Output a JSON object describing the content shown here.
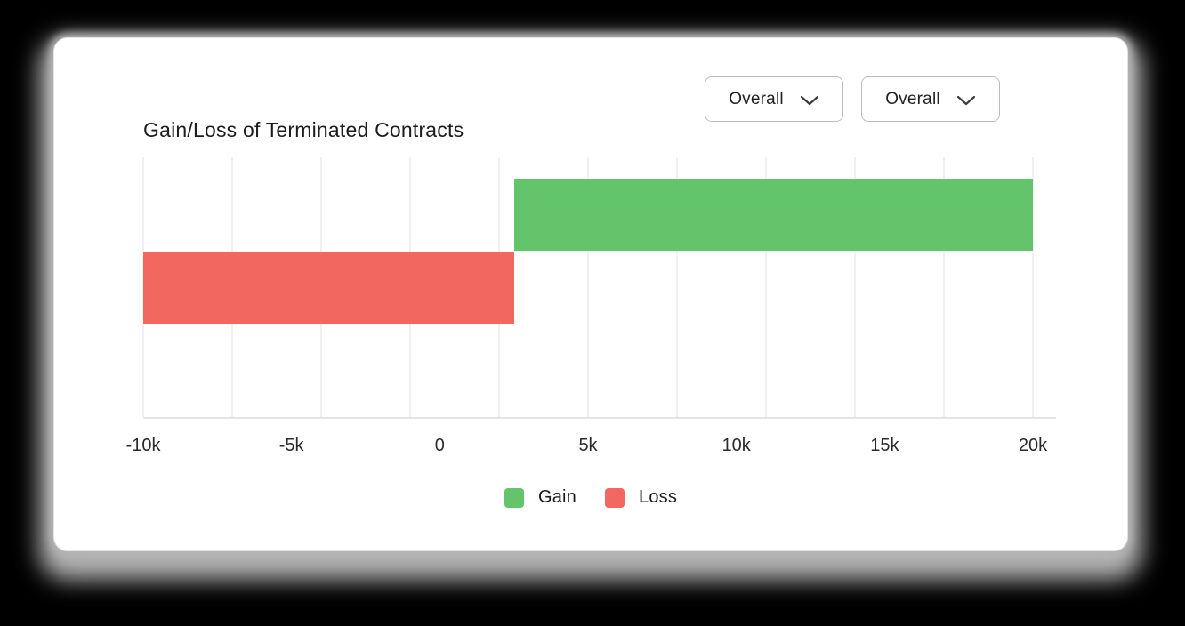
{
  "card": {
    "title": "Gain/Loss of Terminated Contracts"
  },
  "filters": {
    "items": [
      {
        "label": "Overall"
      },
      {
        "label": "Overall"
      }
    ]
  },
  "chart_data": {
    "type": "bar",
    "orientation": "horizontal",
    "title": "Gain/Loss of Terminated Contracts",
    "grid": true,
    "x_axis": {
      "min": -10000,
      "max": 20000,
      "gridlines": 11,
      "ticks": [
        {
          "label": "-10k",
          "value": -10000
        },
        {
          "label": "-5k",
          "value": -5000
        },
        {
          "label": "0",
          "value": 0
        },
        {
          "label": "5k",
          "value": 5000
        },
        {
          "label": "10k",
          "value": 10000
        },
        {
          "label": "15k",
          "value": 15000
        },
        {
          "label": "20k",
          "value": 20000
        }
      ]
    },
    "series": [
      {
        "name": "Gain",
        "color": "#64c46c",
        "from": 2500,
        "to": 20000,
        "value": 17500
      },
      {
        "name": "Loss",
        "color": "#f2675f",
        "from": -10000,
        "to": 2500,
        "value": -12500
      }
    ],
    "legend": {
      "position": "bottom",
      "entries": [
        "Gain",
        "Loss"
      ]
    },
    "colors": {
      "gain": "#64c46c",
      "loss": "#f2675f",
      "gridline": "#f0f0f0",
      "axis_line": "#e4e4e4"
    }
  }
}
